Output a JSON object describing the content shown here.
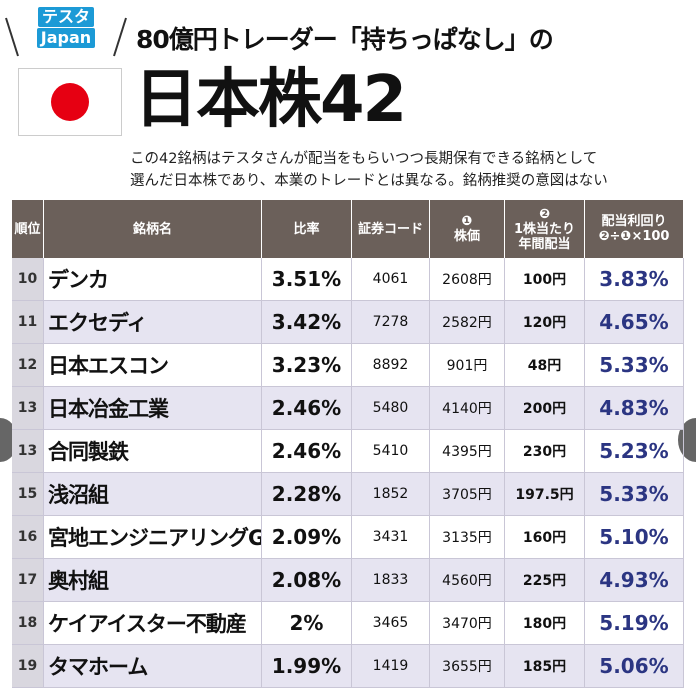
{
  "header": {
    "tag_top": "テスタ",
    "tag_bottom": "Japan",
    "title": "80億円トレーダー「持ちっぱなし」の",
    "big_title": "日本株42",
    "description": [
      "この42銘柄はテスタさんが配当をもらいつつ長期保有できる銘柄として",
      "選んだ日本株であり、本業のトレードとは異なる。銘柄推奨の意図はない"
    ]
  },
  "table": {
    "columns": [
      {
        "label": "順位"
      },
      {
        "label": "銘柄名"
      },
      {
        "label": "比率"
      },
      {
        "label": "証券コード"
      },
      {
        "mark": "❶",
        "label": "株価"
      },
      {
        "mark": "❷",
        "label": "1株当たり\n年間配当"
      },
      {
        "label": "配当利回り",
        "sub": "❷÷❶×100"
      }
    ],
    "rows": [
      [
        "10",
        "デンカ",
        "3.51%",
        "4061",
        "2608円",
        "100円",
        "3.83%"
      ],
      [
        "11",
        "エクセディ",
        "3.42%",
        "7278",
        "2582円",
        "120円",
        "4.65%"
      ],
      [
        "12",
        "日本エスコン",
        "3.23%",
        "8892",
        "901円",
        "48円",
        "5.33%"
      ],
      [
        "13",
        "日本冶金工業",
        "2.46%",
        "5480",
        "4140円",
        "200円",
        "4.83%"
      ],
      [
        "13",
        "合同製鉄",
        "2.46%",
        "5410",
        "4395円",
        "230円",
        "5.23%"
      ],
      [
        "15",
        "浅沼組",
        "2.28%",
        "1852",
        "3705円",
        "197.5円",
        "5.33%"
      ],
      [
        "16",
        "宮地エンジニアリングG",
        "2.09%",
        "3431",
        "3135円",
        "160円",
        "5.10%"
      ],
      [
        "17",
        "奥村組",
        "2.08%",
        "1833",
        "4560円",
        "225円",
        "4.93%"
      ],
      [
        "18",
        "ケイアイスター不動産",
        "2%",
        "3465",
        "3470円",
        "180円",
        "5.19%"
      ],
      [
        "19",
        "タマホーム",
        "1.99%",
        "1419",
        "3655円",
        "185円",
        "5.06%"
      ]
    ]
  }
}
